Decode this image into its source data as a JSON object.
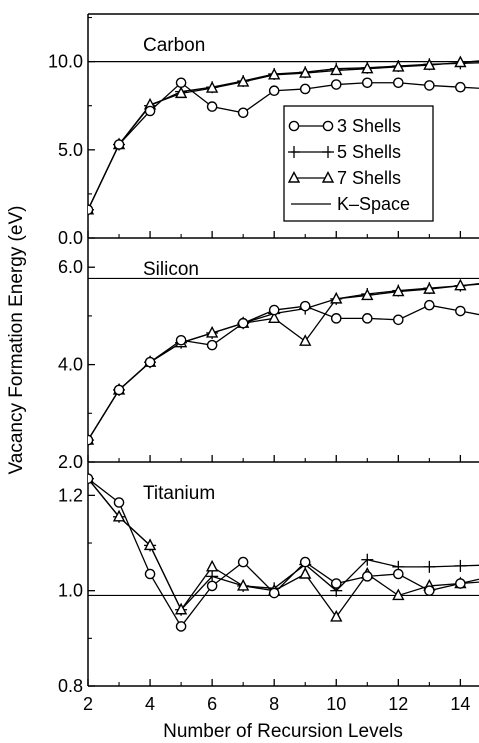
{
  "chart_data": {
    "type": "line",
    "xlabel": "Number of Recursion Levels",
    "ylabel": "Vacancy Formation Energy (eV)",
    "x_ticks": [
      "2",
      "4",
      "6",
      "8",
      "10",
      "12",
      "14"
    ],
    "xlim": [
      2,
      14.6
    ],
    "legend": {
      "placement": "inside carbon panel, right",
      "entries": [
        {
          "name": "3 Shells",
          "marker": "circle"
        },
        {
          "name": "5 Shells",
          "marker": "plus"
        },
        {
          "name": "7 Shells",
          "marker": "triangle"
        },
        {
          "name": "K–Space",
          "marker": "none"
        }
      ]
    },
    "panels": [
      {
        "title": "Carbon",
        "ylim": [
          0,
          12.7
        ],
        "y_ticks": [
          "0.0",
          "5.0",
          "10.0"
        ],
        "y_tick_values": [
          0,
          5,
          10
        ],
        "kspace": 10.0,
        "x": [
          2,
          3,
          4,
          5,
          6,
          7,
          8,
          9,
          10,
          11,
          12,
          13,
          14
        ],
        "series": [
          {
            "name": "3 Shells",
            "values": [
              1.6,
              5.3,
              7.2,
              8.8,
              7.45,
              7.1,
              8.35,
              8.45,
              8.7,
              8.8,
              8.8,
              8.65,
              8.55
            ]
          },
          {
            "name": "5 Shells",
            "values": [
              1.6,
              5.3,
              7.5,
              8.3,
              8.55,
              8.9,
              9.3,
              9.4,
              9.6,
              9.65,
              9.75,
              9.85,
              9.9
            ]
          },
          {
            "name": "7 Shells",
            "values": [
              1.6,
              5.3,
              7.55,
              8.2,
              8.5,
              8.85,
              9.25,
              9.35,
              9.5,
              9.6,
              9.7,
              9.8,
              9.95
            ]
          }
        ]
      },
      {
        "title": "Silicon",
        "ylim": [
          2.0,
          6.6
        ],
        "y_ticks": [
          "2.0",
          "4.0",
          "6.0"
        ],
        "y_tick_values": [
          2,
          4,
          6
        ],
        "kspace": 5.77,
        "x": [
          2,
          3,
          4,
          5,
          6,
          7,
          8,
          9,
          10,
          11,
          12,
          13,
          14
        ],
        "series": [
          {
            "name": "3 Shells",
            "values": [
              2.45,
              3.48,
              4.05,
              4.5,
              4.4,
              4.85,
              5.12,
              5.2,
              4.95,
              4.95,
              4.92,
              5.22,
              5.1
            ]
          },
          {
            "name": "5 Shells",
            "values": [
              2.45,
              3.48,
              4.05,
              4.45,
              4.65,
              4.85,
              5.05,
              5.15,
              5.35,
              5.45,
              5.52,
              5.57,
              5.62
            ]
          },
          {
            "name": "7 Shells",
            "values": [
              2.45,
              3.48,
              4.05,
              4.45,
              4.65,
              4.85,
              4.95,
              4.48,
              5.35,
              5.42,
              5.5,
              5.55,
              5.62
            ]
          }
        ]
      },
      {
        "title": "Titanium",
        "ylim": [
          0.8,
          1.27
        ],
        "y_ticks": [
          "0.8",
          "1.0",
          "1.2"
        ],
        "y_tick_values": [
          0.8,
          1.0,
          1.2
        ],
        "kspace": 0.99,
        "x": [
          2,
          3,
          4,
          5,
          6,
          7,
          8,
          9,
          10,
          11,
          12,
          13,
          14
        ],
        "series": [
          {
            "name": "3 Shells",
            "values": [
              1.235,
              1.185,
              1.035,
              0.925,
              1.01,
              1.06,
              0.995,
              1.06,
              1.015,
              1.03,
              1.035,
              1.0,
              1.015
            ]
          },
          {
            "name": "5 Shells",
            "values": [
              1.235,
              1.155,
              1.095,
              0.96,
              1.03,
              1.01,
              1.005,
              1.055,
              1.0,
              1.065,
              1.05,
              1.05,
              1.052
            ]
          },
          {
            "name": "7 Shells",
            "values": [
              1.235,
              1.155,
              1.095,
              0.96,
              1.05,
              1.01,
              1.0,
              1.035,
              0.945,
              1.035,
              0.99,
              1.01,
              1.015
            ]
          }
        ]
      }
    ]
  }
}
